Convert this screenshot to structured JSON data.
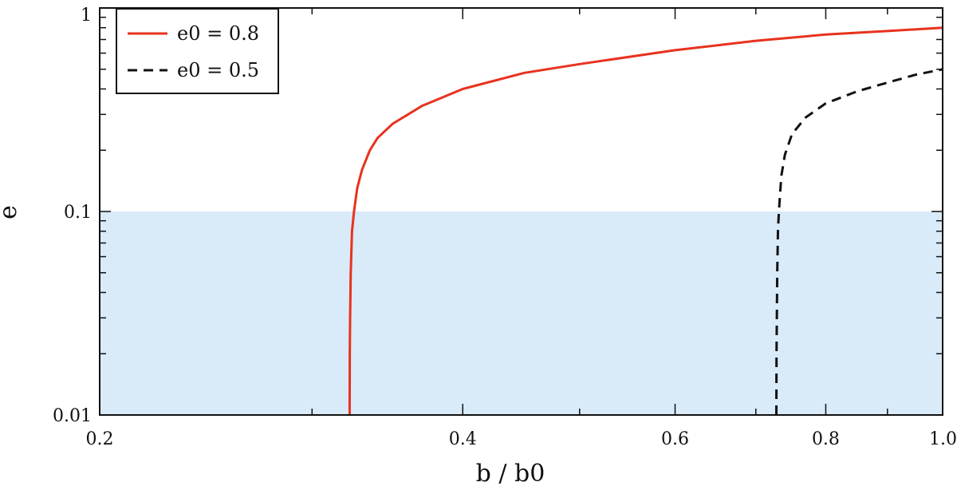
{
  "chart_data": {
    "type": "line",
    "xlabel": "b / b0",
    "ylabel": "e",
    "xscale": "log",
    "yscale": "log",
    "xlim": [
      0.2,
      1.0
    ],
    "ylim": [
      0.01,
      1
    ],
    "x_ticks": [
      0.2,
      0.4,
      0.6,
      0.8,
      1.0
    ],
    "x_tick_labels": [
      "0.2",
      "0.4",
      "0.6",
      "0.8",
      "1.0"
    ],
    "y_ticks": [
      0.01,
      0.1,
      1
    ],
    "y_tick_labels": [
      "0.01",
      "0.1",
      "1"
    ],
    "shaded_region": {
      "y_min": 0.01,
      "y_max": 0.1,
      "color": "#d9eaf8"
    },
    "legend_position": "top-left",
    "grid": false,
    "series": [
      {
        "name": "e0 = 0.8",
        "color": "#e8321e",
        "style": "solid",
        "x": [
          0.3223,
          0.3224,
          0.3226,
          0.323,
          0.3238,
          0.325,
          0.327,
          0.33,
          0.335,
          0.34,
          0.35,
          0.37,
          0.4,
          0.45,
          0.5,
          0.6,
          0.7,
          0.8,
          0.9,
          1.0
        ],
        "y": [
          0.01,
          0.02,
          0.03,
          0.05,
          0.08,
          0.1,
          0.13,
          0.16,
          0.2,
          0.23,
          0.27,
          0.33,
          0.4,
          0.48,
          0.53,
          0.62,
          0.69,
          0.74,
          0.77,
          0.8
        ]
      },
      {
        "name": "e0 = 0.5",
        "color": "#111111",
        "style": "dashed",
        "x": [
          0.728,
          0.7282,
          0.7286,
          0.7292,
          0.7302,
          0.7315,
          0.733,
          0.735,
          0.74,
          0.75,
          0.77,
          0.8,
          0.85,
          0.9,
          0.95,
          1.0
        ],
        "y": [
          0.01,
          0.02,
          0.03,
          0.05,
          0.08,
          0.1,
          0.12,
          0.15,
          0.19,
          0.24,
          0.29,
          0.34,
          0.39,
          0.43,
          0.47,
          0.5
        ]
      }
    ]
  }
}
